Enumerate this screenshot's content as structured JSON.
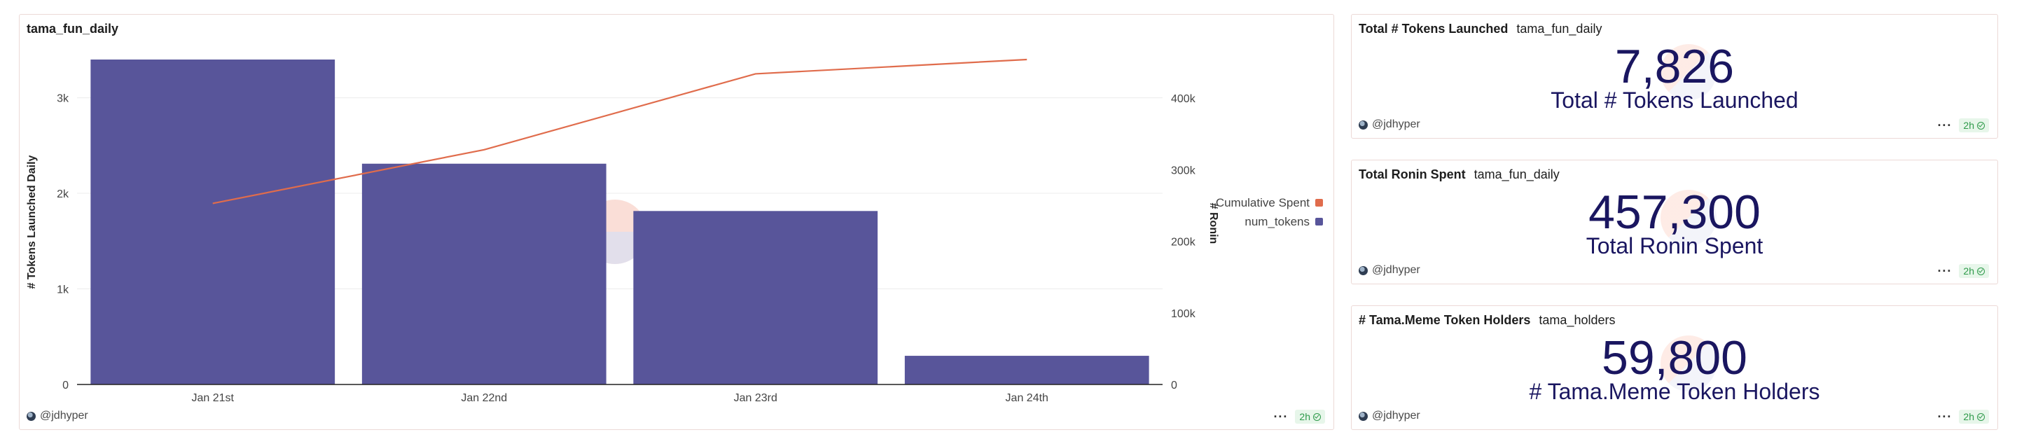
{
  "chart_panel": {
    "title": "tama_fun_daily",
    "user": "@jdhyper",
    "age": "2h"
  },
  "chart_data": {
    "type": "bar",
    "title": "tama_fun_daily",
    "categories": [
      "Jan 21st",
      "Jan 22nd",
      "Jan 23rd",
      "Jan 24th"
    ],
    "series": [
      {
        "name": "num_tokens",
        "type": "bar",
        "axis": "left",
        "color": "#58559a",
        "values": [
          3400,
          2310,
          1815,
          300
        ]
      },
      {
        "name": "Cumulative Spent",
        "type": "line",
        "axis": "right",
        "color": "#e06c4c",
        "values": [
          253000,
          328000,
          434000,
          454000
        ]
      }
    ],
    "ylabel": "# Tokens Launched Daily",
    "y2label": "# Ronin",
    "ylim": [
      0,
      3400
    ],
    "y2lim": [
      0,
      454000
    ],
    "yticks": [
      0,
      1000,
      2000,
      3000
    ],
    "ytick_labels": [
      "0",
      "1k",
      "2k",
      "3k"
    ],
    "y2ticks": [
      0,
      100000,
      200000,
      300000,
      400000
    ],
    "y2tick_labels": [
      "0",
      "100k",
      "200k",
      "300k",
      "400k"
    ],
    "legend": [
      {
        "name": "Cumulative Spent",
        "color": "#e06c4c"
      },
      {
        "name": "num_tokens",
        "color": "#58559a"
      }
    ],
    "legend_position": "right",
    "grid": true,
    "watermark": "Dune"
  },
  "counters": [
    {
      "title": "Total # Tokens Launched",
      "source": "tama_fun_daily",
      "value": "7,826",
      "label": "Total # Tokens Launched",
      "user": "@jdhyper",
      "age": "2h"
    },
    {
      "title": "Total Ronin Spent",
      "source": "tama_fun_daily",
      "value": "457,300",
      "label": "Total Ronin Spent",
      "user": "@jdhyper",
      "age": "2h"
    },
    {
      "title": "# Tama.Meme Token Holders",
      "source": "tama_holders",
      "value": "59,800",
      "label": "# Tama.Meme Token Holders",
      "user": "@jdhyper",
      "age": "2h"
    }
  ],
  "icons": {
    "avatar": "user-avatar-icon",
    "menu": "more-dots-icon",
    "status": "check-circle-icon"
  }
}
